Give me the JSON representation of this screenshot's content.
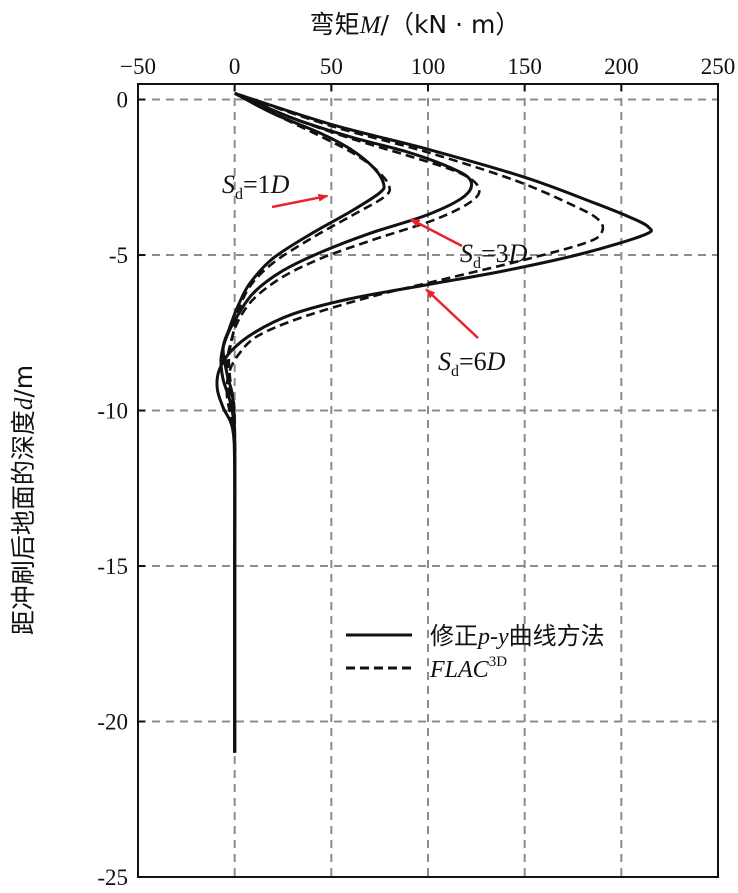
{
  "chart_data": {
    "type": "line",
    "x_axis": {
      "title_main": "弯矩",
      "title_var": "M",
      "title_unit": "/（kN · m）",
      "range": [
        -50,
        250
      ],
      "ticks": [
        -50,
        0,
        50,
        100,
        150,
        200,
        250
      ],
      "tick_labels": [
        "−50",
        "0",
        "50",
        "100",
        "150",
        "200",
        "250"
      ],
      "position": "top"
    },
    "y_axis": {
      "title_main": "距冲刷后地面的深度",
      "title_var": "d",
      "title_unit": "/m",
      "range": [
        -25,
        0.5
      ],
      "ticks": [
        0,
        -5,
        -10,
        -15,
        -20,
        -25
      ],
      "tick_labels": [
        "0",
        "-5",
        "-10",
        "-15",
        "-20",
        "-25"
      ]
    },
    "grid": true,
    "legend": {
      "position": "lower-right",
      "entries": [
        {
          "text": "修正p-y曲线方法",
          "style": "solid"
        },
        {
          "text": "FLAC",
          "sup": "3D",
          "style": "dashed"
        }
      ]
    },
    "annotations": [
      {
        "S": "S",
        "sub": "d",
        "rest": "=1",
        "D": "D",
        "target": [
          48,
          -3.1
        ]
      },
      {
        "S": "S",
        "sub": "d",
        "rest": "=3",
        "D": "D",
        "target": [
          91,
          -3.85
        ]
      },
      {
        "S": "S",
        "sub": "d",
        "rest": "=6",
        "D": "D",
        "target": [
          99,
          -6.1
        ]
      }
    ],
    "series": [
      {
        "label": "Sd=1D",
        "method": "修正p-y曲线方法",
        "style": "solid",
        "points": [
          [
            0,
            0.2
          ],
          [
            20,
            -0.45
          ],
          [
            45,
            -1.1
          ],
          [
            60,
            -1.6
          ],
          [
            72,
            -2.2
          ],
          [
            77,
            -2.7
          ],
          [
            75,
            -3.0
          ],
          [
            60,
            -3.6
          ],
          [
            40,
            -4.3
          ],
          [
            20,
            -5.1
          ],
          [
            8,
            -5.9
          ],
          [
            2,
            -6.6
          ],
          [
            -3,
            -7.4
          ],
          [
            -6,
            -8.0
          ],
          [
            -4,
            -8.8
          ],
          [
            -1,
            -9.6
          ],
          [
            0,
            -11
          ],
          [
            0,
            -15
          ],
          [
            0,
            -21
          ]
        ]
      },
      {
        "label": "Sd=3D",
        "method": "修正p-y曲线方法",
        "style": "solid",
        "points": [
          [
            0,
            0.2
          ],
          [
            30,
            -0.6
          ],
          [
            60,
            -1.2
          ],
          [
            90,
            -1.7
          ],
          [
            112,
            -2.2
          ],
          [
            122,
            -2.6
          ],
          [
            119,
            -3.1
          ],
          [
            100,
            -3.7
          ],
          [
            70,
            -4.3
          ],
          [
            45,
            -4.9
          ],
          [
            25,
            -5.5
          ],
          [
            10,
            -6.2
          ],
          [
            2,
            -6.9
          ],
          [
            -4,
            -7.6
          ],
          [
            -7,
            -8.3
          ],
          [
            -6,
            -9.0
          ],
          [
            -2,
            -9.8
          ],
          [
            0,
            -11
          ],
          [
            0,
            -15
          ],
          [
            0,
            -21
          ]
        ]
      },
      {
        "label": "Sd=6D",
        "method": "修正p-y曲线方法",
        "style": "solid",
        "points": [
          [
            0,
            0.2
          ],
          [
            50,
            -0.8
          ],
          [
            100,
            -1.6
          ],
          [
            150,
            -2.5
          ],
          [
            185,
            -3.3
          ],
          [
            205,
            -3.8
          ],
          [
            214,
            -4.1
          ],
          [
            212,
            -4.35
          ],
          [
            180,
            -4.95
          ],
          [
            140,
            -5.5
          ],
          [
            100,
            -5.95
          ],
          [
            60,
            -6.4
          ],
          [
            30,
            -6.9
          ],
          [
            10,
            -7.5
          ],
          [
            -2,
            -8.1
          ],
          [
            -8,
            -8.7
          ],
          [
            -9,
            -9.3
          ],
          [
            -6,
            -9.9
          ],
          [
            -1,
            -10.6
          ],
          [
            0,
            -12
          ],
          [
            0,
            -15
          ],
          [
            0,
            -21
          ]
        ]
      },
      {
        "label": "Sd=1D",
        "method": "FLAC3D",
        "style": "dashed",
        "points": [
          [
            0,
            0.2
          ],
          [
            20,
            -0.45
          ],
          [
            45,
            -1.2
          ],
          [
            62,
            -1.75
          ],
          [
            74,
            -2.3
          ],
          [
            80,
            -2.8
          ],
          [
            77,
            -3.15
          ],
          [
            60,
            -3.75
          ],
          [
            40,
            -4.45
          ],
          [
            20,
            -5.25
          ],
          [
            8,
            -6.0
          ],
          [
            2,
            -6.8
          ],
          [
            -1,
            -7.6
          ],
          [
            -3,
            -8.3
          ],
          [
            -2,
            -9.2
          ],
          [
            0,
            -10.3
          ],
          [
            0,
            -15
          ],
          [
            0,
            -21
          ]
        ]
      },
      {
        "label": "Sd=3D",
        "method": "FLAC3D",
        "style": "dashed",
        "points": [
          [
            0,
            0.2
          ],
          [
            30,
            -0.6
          ],
          [
            60,
            -1.25
          ],
          [
            92,
            -1.85
          ],
          [
            116,
            -2.35
          ],
          [
            126,
            -2.8
          ],
          [
            123,
            -3.25
          ],
          [
            104,
            -3.85
          ],
          [
            72,
            -4.5
          ],
          [
            45,
            -5.1
          ],
          [
            25,
            -5.7
          ],
          [
            10,
            -6.4
          ],
          [
            2,
            -7.1
          ],
          [
            -2,
            -7.8
          ],
          [
            -4,
            -8.5
          ],
          [
            -3,
            -9.3
          ],
          [
            -1,
            -10.1
          ],
          [
            0,
            -11
          ],
          [
            0,
            -15
          ],
          [
            0,
            -21
          ]
        ]
      },
      {
        "label": "Sd=6D",
        "method": "FLAC3D",
        "style": "dashed",
        "points": [
          [
            0,
            0.2
          ],
          [
            50,
            -0.85
          ],
          [
            100,
            -1.7
          ],
          [
            145,
            -2.6
          ],
          [
            175,
            -3.4
          ],
          [
            188,
            -3.85
          ],
          [
            190,
            -4.25
          ],
          [
            182,
            -4.6
          ],
          [
            150,
            -5.15
          ],
          [
            110,
            -5.75
          ],
          [
            70,
            -6.35
          ],
          [
            35,
            -7.0
          ],
          [
            12,
            -7.6
          ],
          [
            2,
            -8.2
          ],
          [
            -3,
            -8.8
          ],
          [
            -4,
            -9.5
          ],
          [
            -2,
            -10.2
          ],
          [
            0,
            -11
          ],
          [
            0,
            -15
          ],
          [
            0,
            -21
          ]
        ]
      }
    ]
  }
}
